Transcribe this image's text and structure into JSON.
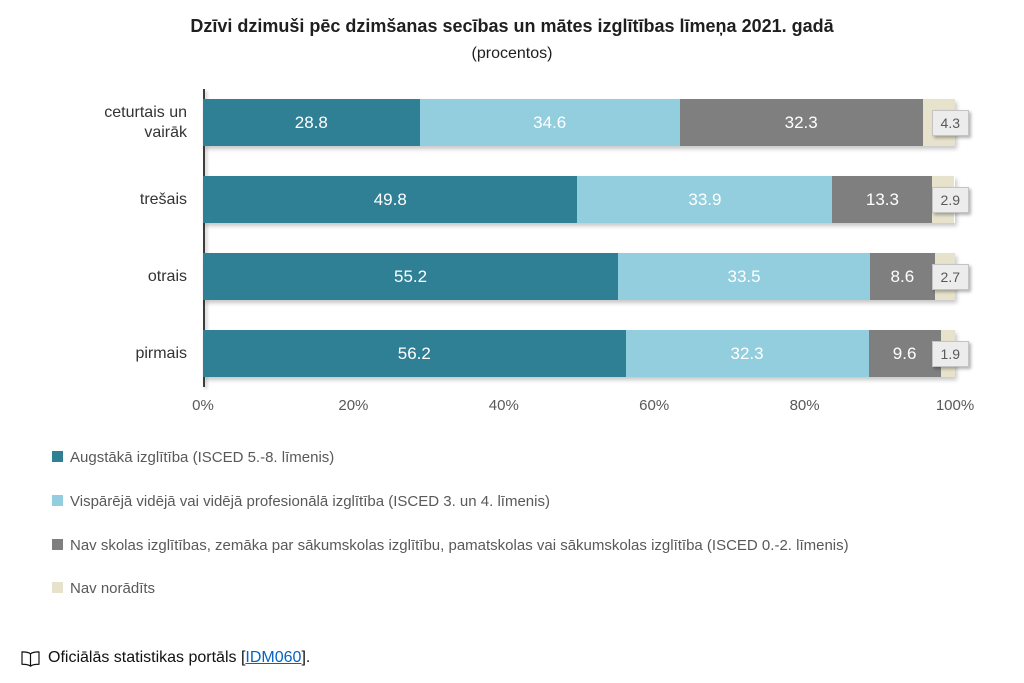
{
  "title": "Dzīvi dzimuši pēc dzimšanas secības un mātes izglītības līmeņa 2021. gadā",
  "subtitle": "(procentos)",
  "chart_data": {
    "type": "bar",
    "orientation": "horizontal",
    "stacked": true,
    "unit": "%",
    "xlim": [
      0,
      100
    ],
    "x_ticks": [
      "0%",
      "20%",
      "40%",
      "60%",
      "80%",
      "100%"
    ],
    "grid": false,
    "legend_position": "bottom-left",
    "categories": [
      "ceturtais un vairāk",
      "trešais",
      "otrais",
      "pirmais"
    ],
    "series": [
      {
        "name": "Augstākā izglītība (ISCED 5.-8. līmenis)",
        "color": "#2f7f95",
        "text_color": "#ffffff",
        "values": [
          28.8,
          49.8,
          55.2,
          56.2
        ]
      },
      {
        "name": "Vispārējā vidējā vai vidējā profesionālā izglītība (ISCED 3. un 4. līmenis)",
        "color": "#92cedd",
        "text_color": "#ffffff",
        "values": [
          34.6,
          33.9,
          33.5,
          32.3
        ]
      },
      {
        "name": "Nav skolas izglītības, zemāka par sākumskolas izglītību, pamatskolas vai sākumskolas izglītība (ISCED 0.-2. līmenis)",
        "color": "#7f7f7f",
        "text_color": "#ffffff",
        "values": [
          32.3,
          13.3,
          8.6,
          9.6
        ]
      },
      {
        "name": "Nav norādīts",
        "color": "#e6e2cc",
        "label_outside": true,
        "values": [
          4.3,
          2.9,
          2.7,
          1.9
        ]
      }
    ]
  },
  "footer": {
    "text": "Oficiālās statistikas portāls [",
    "link": "IDM060",
    "close": "]."
  }
}
